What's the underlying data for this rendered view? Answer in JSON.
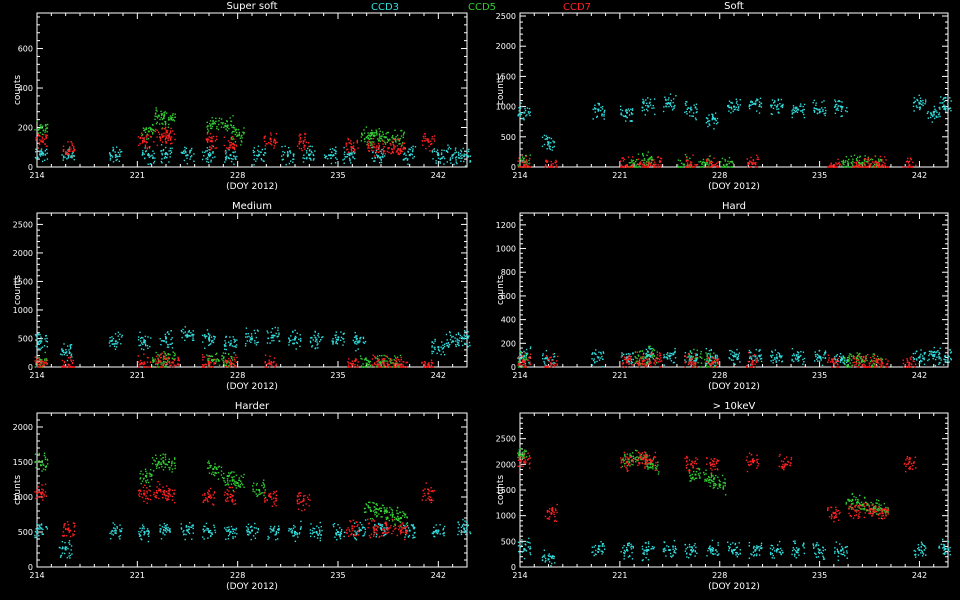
{
  "legend": [
    {
      "name": "CCD3",
      "color": "#33dddd"
    },
    {
      "name": "CCD5",
      "color": "#33cc33"
    },
    {
      "name": "CCD7",
      "color": "#ff2222"
    }
  ],
  "colors": {
    "background": "#000000",
    "axes": "#ffffff"
  },
  "chart_data": [
    {
      "type": "scatter",
      "title": "Super soft",
      "xlabel": "(DOY 2012)",
      "ylabel": "counts",
      "xlim": [
        214,
        244
      ],
      "ylim": [
        0,
        780
      ],
      "xticks": [
        214,
        221,
        228,
        235,
        242
      ],
      "yticks": [
        0,
        200,
        400,
        600
      ],
      "series": [
        {
          "name": "CCD3",
          "x": [
            214.3,
            216.2,
            219.5,
            221.8,
            223.0,
            224.5,
            226.0,
            227.5,
            229.5,
            231.5,
            233.0,
            234.5,
            235.8,
            237.8,
            240.0,
            242.0,
            243.0,
            243.8
          ],
          "y": [
            65,
            60,
            60,
            60,
            70,
            60,
            60,
            60,
            62,
            60,
            60,
            60,
            60,
            55,
            60,
            60,
            60,
            55
          ]
        },
        {
          "name": "CCD5",
          "x": [
            214.3,
            221.8,
            222.5,
            223.2,
            226.3,
            227.3,
            228.0,
            237.0,
            237.5,
            238.3,
            239.2
          ],
          "y": [
            200,
            180,
            260,
            240,
            220,
            210,
            160,
            150,
            160,
            150,
            140
          ]
        },
        {
          "name": "CCD7",
          "x": [
            214.3,
            216.2,
            221.5,
            222.6,
            223.2,
            226.2,
            227.5,
            230.3,
            232.6,
            236.0,
            237.5,
            238.5,
            239.2,
            241.3
          ],
          "y": [
            130,
            80,
            130,
            150,
            160,
            130,
            110,
            140,
            130,
            100,
            100,
            95,
            90,
            130
          ]
        }
      ]
    },
    {
      "type": "scatter",
      "title": "Soft",
      "xlabel": "(DOY 2012)",
      "ylabel": "counts",
      "xlim": [
        214,
        244
      ],
      "ylim": [
        0,
        2550
      ],
      "xticks": [
        214,
        221,
        228,
        235,
        242
      ],
      "yticks": [
        0,
        500,
        1000,
        1500,
        2000,
        2500
      ],
      "series": [
        {
          "name": "CCD3",
          "x": [
            214.3,
            216.0,
            219.5,
            221.5,
            223.0,
            224.5,
            226.0,
            227.5,
            229.0,
            230.5,
            232.0,
            233.5,
            235.0,
            236.5,
            242.0,
            243.0,
            243.8
          ],
          "y": [
            900,
            400,
            950,
            900,
            1000,
            1050,
            950,
            800,
            1000,
            1050,
            1000,
            950,
            950,
            1000,
            1050,
            900,
            1000
          ]
        },
        {
          "name": "CCD5",
          "x": [
            214.3,
            222.0,
            223.0,
            225.5,
            227.0,
            228.5,
            237.0,
            238.0,
            239.0
          ],
          "y": [
            80,
            60,
            120,
            40,
            60,
            40,
            60,
            70,
            50
          ]
        },
        {
          "name": "CCD7",
          "x": [
            214.3,
            216.2,
            221.5,
            222.6,
            223.5,
            226.0,
            227.5,
            230.3,
            236.0,
            237.8,
            238.5,
            239.4,
            241.3
          ],
          "y": [
            30,
            20,
            30,
            40,
            40,
            35,
            30,
            50,
            30,
            30,
            25,
            30,
            30
          ]
        }
      ]
    },
    {
      "type": "scatter",
      "title": "Medium",
      "xlabel": "(DOY 2012)",
      "ylabel": "counts",
      "xlim": [
        214,
        244
      ],
      "ylim": [
        0,
        2700
      ],
      "xticks": [
        214,
        221,
        228,
        235,
        242
      ],
      "yticks": [
        0,
        500,
        1000,
        1500,
        2000,
        2500
      ],
      "series": [
        {
          "name": "CCD3",
          "x": [
            214.3,
            216.0,
            219.5,
            221.5,
            223.0,
            224.5,
            226.0,
            227.5,
            229.0,
            230.5,
            232.0,
            233.5,
            235.0,
            236.5,
            242.0,
            243.0,
            243.8
          ],
          "y": [
            450,
            250,
            450,
            450,
            500,
            550,
            500,
            400,
            500,
            550,
            500,
            480,
            480,
            450,
            350,
            450,
            500
          ]
        },
        {
          "name": "CCD5",
          "x": [
            214.3,
            222.5,
            223.2,
            226.3,
            227.3,
            237.0,
            238.0,
            239.0
          ],
          "y": [
            80,
            100,
            150,
            120,
            100,
            60,
            70,
            50
          ]
        },
        {
          "name": "CCD7",
          "x": [
            214.3,
            216.2,
            221.5,
            222.6,
            223.5,
            226.0,
            227.5,
            230.3,
            236.0,
            237.8,
            238.5,
            239.4,
            241.3
          ],
          "y": [
            60,
            40,
            60,
            100,
            80,
            60,
            50,
            60,
            40,
            40,
            40,
            40,
            40
          ]
        }
      ]
    },
    {
      "type": "scatter",
      "title": "Hard",
      "xlabel": "(DOY 2012)",
      "ylabel": "counts",
      "xlim": [
        214,
        244
      ],
      "ylim": [
        0,
        1300
      ],
      "xticks": [
        214,
        221,
        228,
        235,
        242
      ],
      "yticks": [
        0,
        200,
        400,
        600,
        800,
        1000,
        1200
      ],
      "series": [
        {
          "name": "CCD3",
          "x": [
            214.3,
            216.0,
            219.5,
            221.5,
            223.0,
            224.5,
            226.0,
            227.5,
            229.0,
            230.5,
            232.0,
            233.5,
            235.0,
            236.5,
            242.0,
            243.0,
            243.8
          ],
          "y": [
            90,
            60,
            80,
            80,
            100,
            90,
            80,
            80,
            90,
            90,
            80,
            80,
            80,
            60,
            80,
            100,
            90
          ]
        },
        {
          "name": "CCD5",
          "x": [
            214.3,
            222.5,
            223.2,
            226.3,
            227.3,
            237.0,
            238.0,
            239.0
          ],
          "y": [
            60,
            80,
            100,
            70,
            60,
            50,
            60,
            40
          ]
        },
        {
          "name": "CCD7",
          "x": [
            214.3,
            216.2,
            221.5,
            222.6,
            223.5,
            226.0,
            227.5,
            230.3,
            236.0,
            237.8,
            238.5,
            239.4,
            241.3
          ],
          "y": [
            40,
            20,
            40,
            50,
            50,
            40,
            35,
            40,
            30,
            30,
            30,
            30,
            30
          ]
        }
      ]
    },
    {
      "type": "scatter",
      "title": "Harder",
      "xlabel": "(DOY 2012)",
      "ylabel": "counts",
      "xlim": [
        214,
        244
      ],
      "ylim": [
        0,
        2200
      ],
      "xticks": [
        214,
        221,
        228,
        235,
        242
      ],
      "yticks": [
        0,
        500,
        1000,
        1500,
        2000
      ],
      "series": [
        {
          "name": "CCD3",
          "x": [
            214.3,
            216.0,
            219.5,
            221.5,
            223.0,
            224.5,
            226.0,
            227.5,
            229.0,
            230.5,
            232.0,
            233.5,
            235.0,
            236.5,
            238.0,
            240.0,
            242.0,
            243.8
          ],
          "y": [
            550,
            250,
            520,
            500,
            550,
            520,
            500,
            500,
            520,
            520,
            500,
            500,
            500,
            520,
            550,
            520,
            520,
            550
          ]
        },
        {
          "name": "CCD5",
          "x": [
            214.3,
            221.6,
            222.5,
            223.2,
            226.3,
            227.3,
            228.0,
            229.5,
            237.3,
            238.0,
            238.8,
            239.4
          ],
          "y": [
            1500,
            1300,
            1500,
            1500,
            1400,
            1300,
            1200,
            1100,
            800,
            800,
            750,
            700
          ]
        },
        {
          "name": "CCD7",
          "x": [
            214.3,
            216.2,
            221.5,
            222.6,
            223.2,
            226.0,
            227.5,
            230.3,
            232.6,
            236.0,
            237.5,
            238.5,
            239.4,
            241.3
          ],
          "y": [
            1050,
            550,
            1050,
            1100,
            1050,
            1000,
            1000,
            1000,
            950,
            550,
            550,
            550,
            520,
            1050
          ]
        }
      ]
    },
    {
      "type": "scatter",
      "title": "> 10keV",
      "xlabel": "(DOY 2012)",
      "ylabel": "counts",
      "xlim": [
        214,
        244
      ],
      "ylim": [
        0,
        3000
      ],
      "xticks": [
        214,
        221,
        228,
        235,
        242
      ],
      "yticks": [
        0,
        500,
        1000,
        1500,
        2000,
        2500
      ],
      "series": [
        {
          "name": "CCD3",
          "x": [
            214.3,
            216.0,
            219.5,
            221.5,
            223.0,
            224.5,
            226.0,
            227.5,
            229.0,
            230.5,
            232.0,
            233.5,
            235.0,
            236.5,
            242.0,
            243.8
          ],
          "y": [
            350,
            150,
            350,
            330,
            330,
            330,
            330,
            330,
            330,
            330,
            330,
            330,
            330,
            320,
            330,
            350
          ]
        },
        {
          "name": "CCD5",
          "x": [
            214.3,
            221.6,
            222.5,
            223.3,
            226.3,
            227.3,
            228.0,
            237.3,
            238.0,
            238.8,
            239.4
          ],
          "y": [
            2200,
            2100,
            2100,
            2000,
            1800,
            1700,
            1600,
            1300,
            1200,
            1150,
            1100
          ]
        },
        {
          "name": "CCD7",
          "x": [
            214.3,
            216.2,
            221.5,
            222.6,
            223.2,
            226.0,
            227.5,
            230.3,
            232.6,
            236.0,
            237.5,
            238.5,
            239.4,
            241.3
          ],
          "y": [
            2050,
            1050,
            2050,
            2100,
            2050,
            2000,
            2000,
            2050,
            2000,
            1050,
            1100,
            1100,
            1050,
            2050
          ]
        }
      ]
    }
  ]
}
